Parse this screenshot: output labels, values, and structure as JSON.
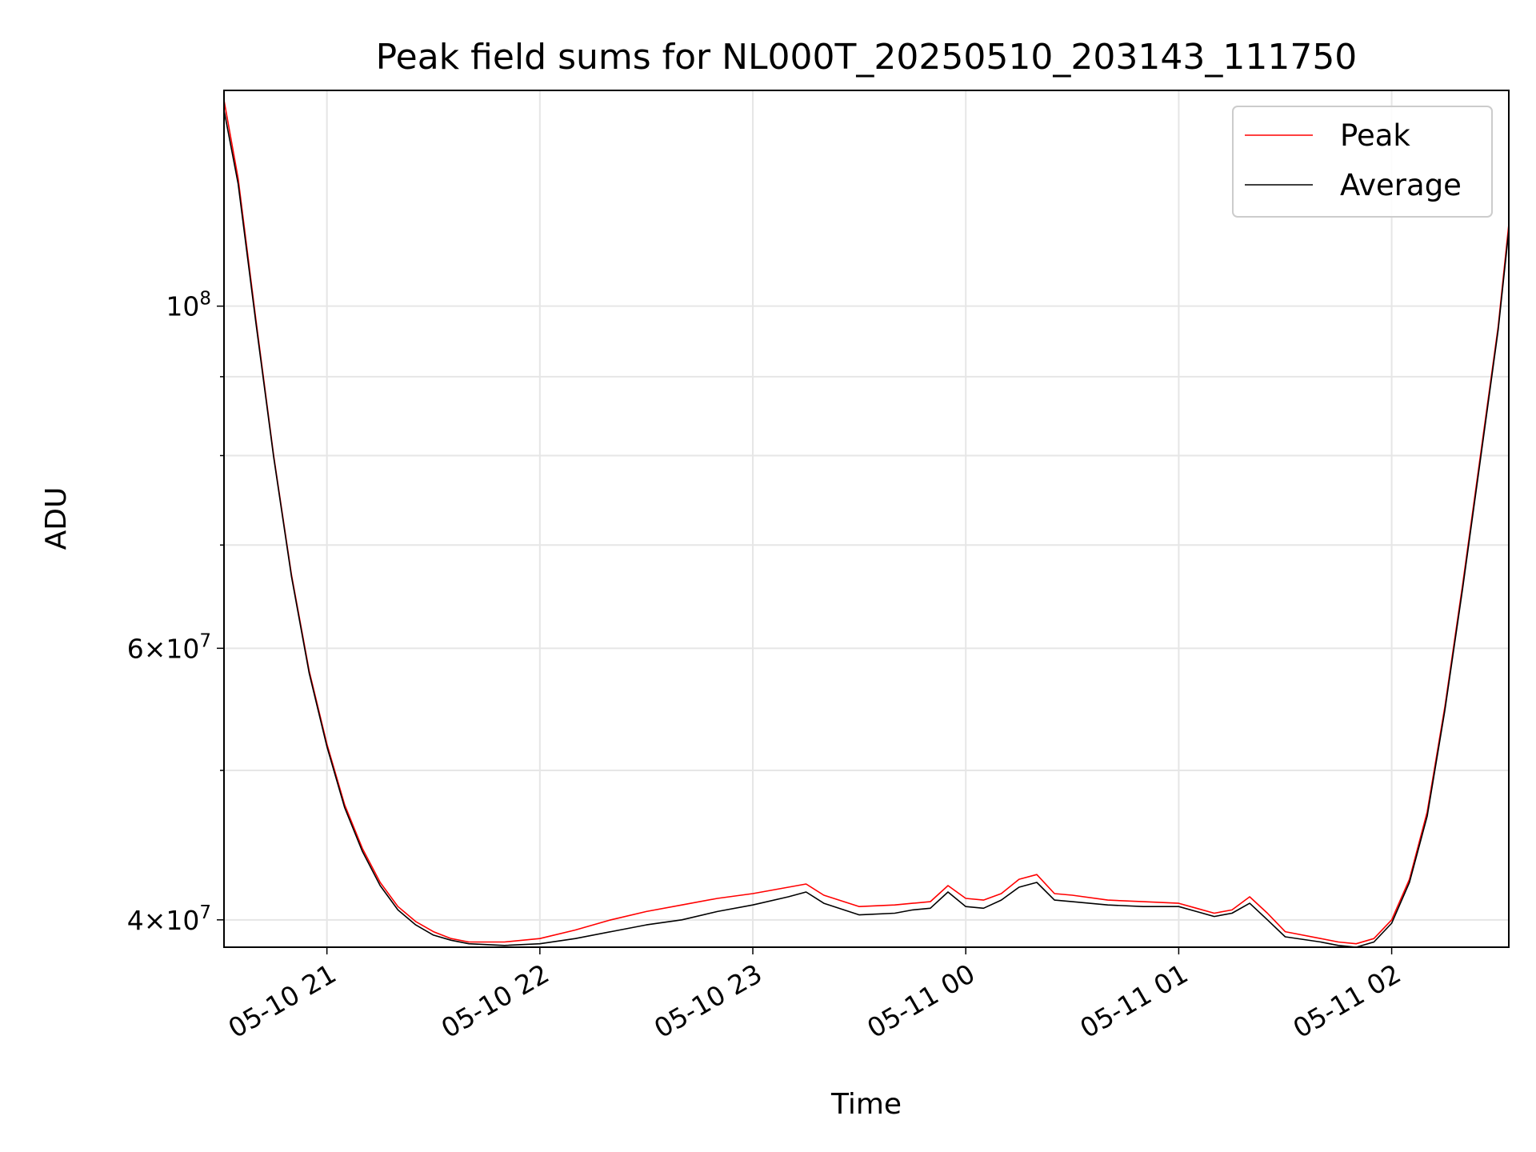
{
  "chart_data": {
    "type": "line",
    "title": "Peak field sums for NL000T_20250510_203143_111750",
    "xlabel": "Time",
    "ylabel": "ADU",
    "y_scale": "log",
    "grid": true,
    "legend_position": "top-right",
    "xlim": [
      "2025-05-10 20:31",
      "2025-05-11 02:33"
    ],
    "ylim": [
      38400000,
      138000000
    ],
    "x_ticks": [
      {
        "value": "2025-05-10 21:00",
        "label": "05-10 21"
      },
      {
        "value": "2025-05-10 22:00",
        "label": "05-10 22"
      },
      {
        "value": "2025-05-10 23:00",
        "label": "05-10 23"
      },
      {
        "value": "2025-05-11 00:00",
        "label": "05-11 00"
      },
      {
        "value": "2025-05-11 01:00",
        "label": "05-11 01"
      },
      {
        "value": "2025-05-11 02:00",
        "label": "05-11 02"
      }
    ],
    "y_ticks": [
      {
        "value": 100000000,
        "base": "10",
        "exp": "8",
        "mant": ""
      },
      {
        "value": 60000000,
        "base": "10",
        "exp": "7",
        "mant": "6×"
      },
      {
        "value": 40000000,
        "base": "10",
        "exp": "7",
        "mant": "4×"
      }
    ],
    "y_minor_ticks": [
      50000000,
      70000000,
      80000000,
      90000000
    ],
    "series": [
      {
        "name": "Peak",
        "color": "#ff0000",
        "x": [
          "2025-05-10 20:31",
          "2025-05-10 20:35",
          "2025-05-10 20:40",
          "2025-05-10 20:45",
          "2025-05-10 20:50",
          "2025-05-10 20:55",
          "2025-05-10 21:00",
          "2025-05-10 21:05",
          "2025-05-10 21:10",
          "2025-05-10 21:15",
          "2025-05-10 21:20",
          "2025-05-10 21:25",
          "2025-05-10 21:30",
          "2025-05-10 21:35",
          "2025-05-10 21:40",
          "2025-05-10 21:50",
          "2025-05-10 22:00",
          "2025-05-10 22:10",
          "2025-05-10 22:20",
          "2025-05-10 22:30",
          "2025-05-10 22:40",
          "2025-05-10 22:50",
          "2025-05-10 23:00",
          "2025-05-10 23:10",
          "2025-05-10 23:15",
          "2025-05-10 23:20",
          "2025-05-10 23:30",
          "2025-05-10 23:40",
          "2025-05-10 23:45",
          "2025-05-10 23:50",
          "2025-05-10 23:55",
          "2025-05-11 00:00",
          "2025-05-11 00:05",
          "2025-05-11 00:10",
          "2025-05-11 00:15",
          "2025-05-11 00:20",
          "2025-05-11 00:25",
          "2025-05-11 00:30",
          "2025-05-11 00:40",
          "2025-05-11 00:50",
          "2025-05-11 01:00",
          "2025-05-11 01:05",
          "2025-05-11 01:10",
          "2025-05-11 01:15",
          "2025-05-11 01:20",
          "2025-05-11 01:25",
          "2025-05-11 01:30",
          "2025-05-11 01:40",
          "2025-05-11 01:45",
          "2025-05-11 01:50",
          "2025-05-11 01:55",
          "2025-05-11 02:00",
          "2025-05-11 02:05",
          "2025-05-11 02:10",
          "2025-05-11 02:15",
          "2025-05-11 02:20",
          "2025-05-11 02:25",
          "2025-05-11 02:30",
          "2025-05-11 02:33"
        ],
        "y": [
          136000000,
          121000000,
          98000000,
          80000000,
          67000000,
          58000000,
          52000000,
          47500000,
          44500000,
          42300000,
          40800000,
          39900000,
          39300000,
          38900000,
          38700000,
          38700000,
          38900000,
          39400000,
          40000000,
          40500000,
          40900000,
          41300000,
          41600000,
          42000000,
          42200000,
          41500000,
          40800000,
          40900000,
          41000000,
          41100000,
          42100000,
          41300000,
          41200000,
          41600000,
          42500000,
          42800000,
          41600000,
          41500000,
          41200000,
          41100000,
          41000000,
          40700000,
          40400000,
          40600000,
          41400000,
          40400000,
          39300000,
          38900000,
          38700000,
          38600000,
          38900000,
          40000000,
          42500000,
          47000000,
          55000000,
          66000000,
          80000000,
          97000000,
          113000000
        ]
      },
      {
        "name": "Average",
        "color": "#000000",
        "x": [
          "2025-05-10 20:31",
          "2025-05-10 20:35",
          "2025-05-10 20:40",
          "2025-05-10 20:45",
          "2025-05-10 20:50",
          "2025-05-10 20:55",
          "2025-05-10 21:00",
          "2025-05-10 21:05",
          "2025-05-10 21:10",
          "2025-05-10 21:15",
          "2025-05-10 21:20",
          "2025-05-10 21:25",
          "2025-05-10 21:30",
          "2025-05-10 21:35",
          "2025-05-10 21:40",
          "2025-05-10 21:50",
          "2025-05-10 22:00",
          "2025-05-10 22:10",
          "2025-05-10 22:20",
          "2025-05-10 22:30",
          "2025-05-10 22:40",
          "2025-05-10 22:50",
          "2025-05-10 23:00",
          "2025-05-10 23:10",
          "2025-05-10 23:15",
          "2025-05-10 23:20",
          "2025-05-10 23:30",
          "2025-05-10 23:40",
          "2025-05-10 23:45",
          "2025-05-10 23:50",
          "2025-05-10 23:55",
          "2025-05-11 00:00",
          "2025-05-11 00:05",
          "2025-05-11 00:10",
          "2025-05-11 00:15",
          "2025-05-11 00:20",
          "2025-05-11 00:25",
          "2025-05-11 00:30",
          "2025-05-11 00:40",
          "2025-05-11 00:50",
          "2025-05-11 01:00",
          "2025-05-11 01:05",
          "2025-05-11 01:10",
          "2025-05-11 01:15",
          "2025-05-11 01:20",
          "2025-05-11 01:25",
          "2025-05-11 01:30",
          "2025-05-11 01:40",
          "2025-05-11 01:45",
          "2025-05-11 01:50",
          "2025-05-11 01:55",
          "2025-05-11 02:00",
          "2025-05-11 02:05",
          "2025-05-11 02:10",
          "2025-05-11 02:15",
          "2025-05-11 02:20",
          "2025-05-11 02:25",
          "2025-05-11 02:30",
          "2025-05-11 02:33"
        ],
        "y": [
          134000000,
          120000000,
          97500000,
          79800000,
          66800000,
          57800000,
          51800000,
          47300000,
          44300000,
          42100000,
          40600000,
          39700000,
          39100000,
          38800000,
          38600000,
          38500000,
          38600000,
          38900000,
          39300000,
          39700000,
          40000000,
          40500000,
          40900000,
          41400000,
          41700000,
          41000000,
          40300000,
          40400000,
          40600000,
          40700000,
          41700000,
          40800000,
          40700000,
          41200000,
          42000000,
          42300000,
          41200000,
          41100000,
          40900000,
          40800000,
          40800000,
          40500000,
          40200000,
          40400000,
          41000000,
          40000000,
          39000000,
          38700000,
          38500000,
          38400000,
          38700000,
          39800000,
          42300000,
          46700000,
          54700000,
          65600000,
          79500000,
          96500000,
          112000000
        ]
      }
    ]
  }
}
